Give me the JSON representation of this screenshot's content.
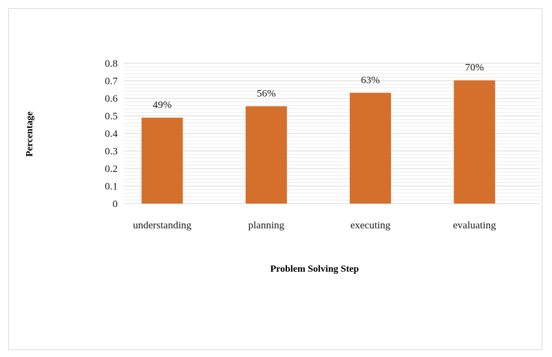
{
  "chart_data": {
    "type": "bar",
    "categories": [
      "understanding",
      "planning",
      "executing",
      "evaluating"
    ],
    "values": [
      0.49,
      0.555,
      0.632,
      0.703
    ],
    "data_labels": [
      "49%",
      "56%",
      "63%",
      "70%"
    ],
    "yticks": [
      "0",
      "0.1",
      "0.2",
      "0.3",
      "0.4",
      "0.5",
      "0.6",
      "0.7",
      "0.8"
    ],
    "ylim": [
      0,
      0.8
    ],
    "xlabel": "Problem Solving Step",
    "ylabel": "Percentage",
    "grid": true,
    "colors": {
      "bar": "#d4702b",
      "grid": "#d9d9d9",
      "minor_grid": "#ececec"
    }
  }
}
